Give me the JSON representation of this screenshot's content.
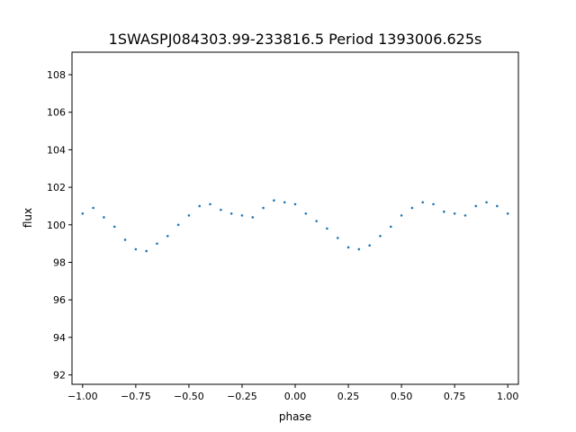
{
  "chart_data": {
    "type": "scatter",
    "title": "1SWASPJ084303.99-233816.5 Period 1393006.625s",
    "xlabel": "phase",
    "ylabel": "flux",
    "xlim": [
      -1.05,
      1.05
    ],
    "ylim": [
      91.5,
      109.2
    ],
    "xticks": [
      -1.0,
      -0.75,
      -0.5,
      -0.25,
      0.0,
      0.25,
      0.5,
      0.75,
      1.0
    ],
    "xtick_labels": [
      "−1.00",
      "−0.75",
      "−0.50",
      "−0.25",
      "0.00",
      "0.25",
      "0.50",
      "0.75",
      "1.00"
    ],
    "yticks": [
      92,
      94,
      96,
      98,
      100,
      102,
      104,
      106,
      108
    ],
    "ytick_labels": [
      "92",
      "94",
      "96",
      "98",
      "100",
      "102",
      "104",
      "106",
      "108"
    ],
    "grid": false,
    "legend": "none",
    "point_color": "#1f77b4",
    "series": [
      {
        "x": [
          -1.0,
          -0.95,
          -0.9,
          -0.85,
          -0.8,
          -0.75,
          -0.7,
          -0.65,
          -0.6,
          -0.55,
          -0.5,
          -0.45,
          -0.4,
          -0.35,
          -0.3,
          -0.25,
          -0.2,
          -0.15,
          -0.1,
          -0.05,
          0.0,
          0.05,
          0.1,
          0.15,
          0.2,
          0.25,
          0.3,
          0.35,
          0.4,
          0.45,
          0.5,
          0.55,
          0.6,
          0.65,
          0.7,
          0.75,
          0.8,
          0.85,
          0.9,
          0.95,
          1.0
        ],
        "y": [
          100.6,
          100.9,
          100.4,
          99.9,
          99.2,
          98.7,
          98.6,
          99.0,
          99.4,
          100.0,
          100.5,
          101.0,
          101.1,
          100.8,
          100.6,
          100.5,
          100.4,
          100.9,
          101.3,
          101.2,
          101.1,
          100.6,
          100.2,
          99.8,
          99.3,
          98.8,
          98.7,
          98.9,
          99.4,
          99.9,
          100.5,
          100.9,
          101.2,
          101.1,
          100.7,
          100.6,
          100.5,
          101.0,
          101.2,
          101.0,
          100.6
        ]
      }
    ]
  }
}
